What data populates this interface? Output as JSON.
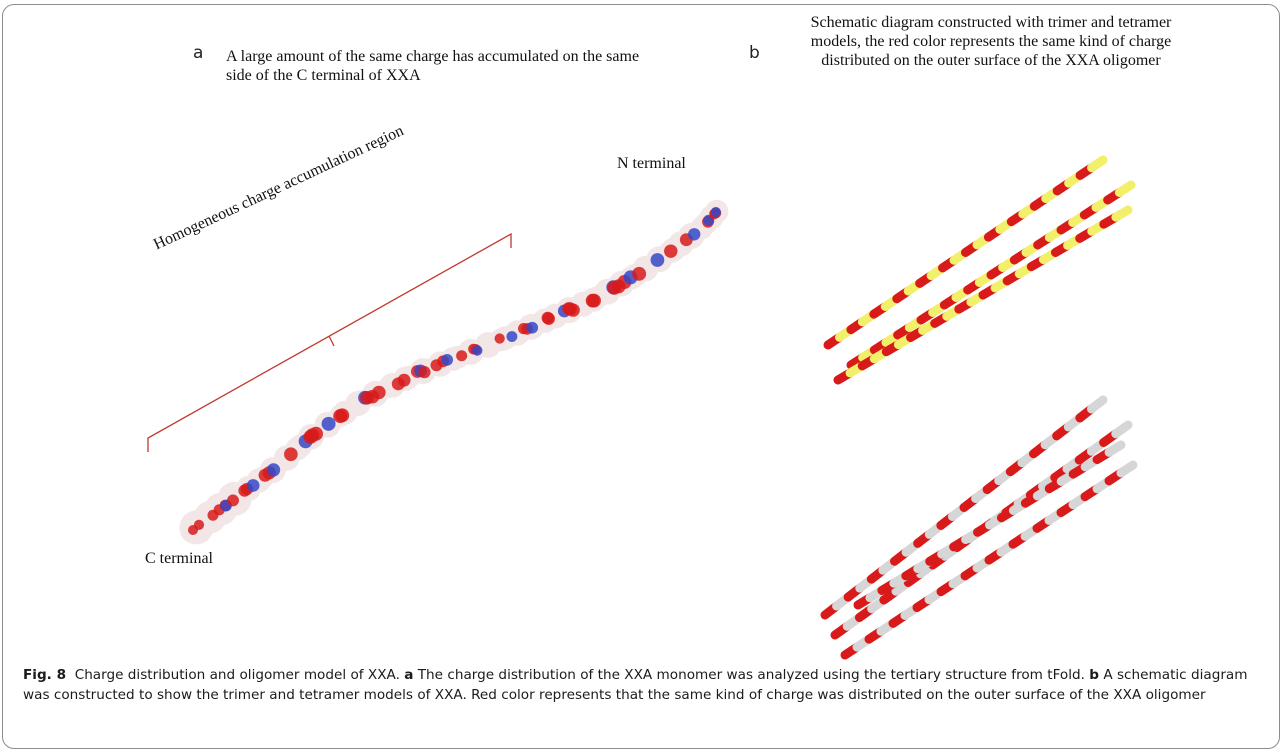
{
  "panel_a": {
    "letter": "a",
    "caption": "A large amount of the same charge has accumulated on the same side of the C terminal of XXA",
    "n_terminal": "N terminal",
    "c_terminal": "C terminal",
    "region_label": "Homogeneous charge accumulation region"
  },
  "panel_b": {
    "letter": "b",
    "caption": "Schematic diagram constructed with trimer and tetramer models, the red color represents the same kind of charge distributed on the outer surface of the XXA oligomer"
  },
  "figure_caption": {
    "label": "Fig. 8",
    "title": "Charge distribution and oligomer model of XXA.",
    "a_label": "a",
    "a_text": "The charge distribution of the XXA monomer was analyzed using the tertiary structure from tFold.",
    "b_label": "b",
    "b_text": "A schematic diagram was constructed to show the trimer and tetramer models of XXA. Red color represents that the same kind of charge was distributed on the outer surface of the XXA oligomer"
  },
  "colors": {
    "negative_charge": "#d81a1a",
    "positive_charge": "#3548c8",
    "neutral_surface": "#f2e6e6",
    "trimer_helix": "#f2ef6a",
    "tetramer_helix": "#d6d6d6",
    "bracket": "#c0392b"
  }
}
